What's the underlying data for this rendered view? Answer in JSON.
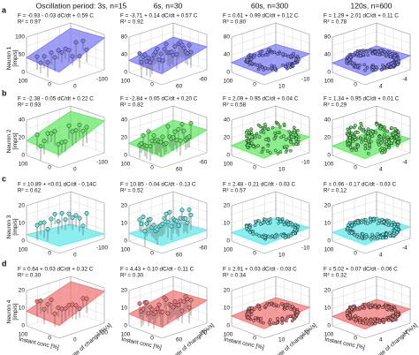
{
  "columns": [
    "Oscillation period: 3s, n=15",
    "6s, n=30",
    "60s, n=300",
    "120s, n=600"
  ],
  "rows": [
    {
      "letter": "a",
      "ylabel": [
        "Neuron 1",
        "[imp/s]"
      ],
      "color": "#7f7ff5",
      "panels": [
        {
          "eq": "F = -0.93 - 0.03 dC/dt + 0.59 C",
          "r2": "R² = 0.97",
          "zticks": [
            "100",
            "50",
            "0"
          ],
          "xticks": [
            "100",
            "0"
          ],
          "yticks": [
            "0",
            "-100"
          ]
        },
        {
          "eq": "F = -3.71 + 0.14 dC/dt + 0.57 C",
          "r2": "R² = 0.92",
          "zticks": [
            "80",
            "40",
            "0"
          ],
          "xticks": [
            "100",
            "0"
          ],
          "yticks": [
            "60",
            "-60"
          ]
        },
        {
          "eq": "F = 0.61 + 0.99 dC/dt + 0.12 C",
          "r2": "R² = 0.80",
          "zticks": [
            "80",
            "40",
            "0"
          ],
          "xticks": [
            "100",
            "0"
          ],
          "yticks": [
            "10",
            "-10"
          ]
        },
        {
          "eq": "F = 1.29 + 2.01 dC/dt + 0.11 C",
          "r2": "R² = 0.78",
          "zticks": [
            "80",
            "40",
            "0"
          ],
          "xticks": [
            "100",
            "0"
          ],
          "yticks": [
            "4",
            "-4"
          ]
        }
      ]
    },
    {
      "letter": "b",
      "ylabel": [
        "Neuron 2",
        "[imp/s]"
      ],
      "color": "#66e866",
      "panels": [
        {
          "eq": "F = -2.38 - 0.05 dC/dt + 0.22 C",
          "r2": "R² = 0.93",
          "zticks": [
            "40",
            "20",
            "0"
          ],
          "xticks": [
            "100",
            "0"
          ],
          "yticks": [
            "0",
            "-100"
          ]
        },
        {
          "eq": "F = -2.84 + 0.05 dC/dt + 0.20 C",
          "r2": "R² = 0.82",
          "zticks": [
            "40",
            "20",
            "0"
          ],
          "xticks": [
            "100",
            "0"
          ],
          "yticks": [
            "60",
            "-60"
          ]
        },
        {
          "eq": "F = 2.09 + 0.95 dC/dt + 0.04 C",
          "r2": "R² = 0.58",
          "zticks": [
            "40",
            "20",
            "0"
          ],
          "xticks": [
            "100",
            "0"
          ],
          "yticks": [
            "10",
            "-10"
          ]
        },
        {
          "eq": "F = 1.34 + 0.95 dC/dt + 0.01 C",
          "r2": "R² = 0.29",
          "zticks": [
            "40",
            "20",
            "0"
          ],
          "xticks": [
            "100",
            "0"
          ],
          "yticks": [
            "4",
            "-4"
          ]
        }
      ]
    },
    {
      "letter": "c",
      "ylabel": [
        "Neuron 3",
        "[imp/s]"
      ],
      "color": "#66e8e8",
      "panels": [
        {
          "eq": "F = 10.89 + <0.01 dC/dt - 0.14C",
          "r2": "R² = 0.62",
          "zticks": [
            "20",
            "10",
            "0"
          ],
          "xticks": [
            "100",
            "0"
          ],
          "yticks": [
            "0",
            "-100"
          ]
        },
        {
          "eq": "F = 10.85 - 0.04 dC/dt - 0.13 C",
          "r2": "R² = 0.52",
          "zticks": [
            "20",
            "10",
            "0"
          ],
          "xticks": [
            "100",
            "0"
          ],
          "yticks": [
            "60",
            "-60"
          ]
        },
        {
          "eq": "F = 2.48 - 0.21 dC/dt - 0.03 C",
          "r2": "R² = 0.57",
          "zticks": [
            "20",
            "10",
            "0"
          ],
          "xticks": [
            "100",
            "0"
          ],
          "yticks": [
            "10",
            "-10"
          ]
        },
        {
          "eq": "F = 0.96 - 0.17 dC/dt - 0.03 C",
          "r2": "R² = 0.12",
          "zticks": [
            "20",
            "10",
            "0"
          ],
          "xticks": [
            "100",
            "0"
          ],
          "yticks": [
            "4",
            "-4"
          ]
        }
      ]
    },
    {
      "letter": "d",
      "ylabel": [
        "Neuron 4",
        "[imp/s]"
      ],
      "color": "#f27a7a",
      "panels": [
        {
          "eq": "F = 0.64 + 0.03 dC/dt + 0.32 C",
          "r2": "R² = 0.30",
          "zticks": [
            "20",
            "10",
            "0"
          ],
          "xticks": [
            "100",
            "0"
          ],
          "yticks": [
            "0",
            "-100"
          ]
        },
        {
          "eq": "F = 4.43 + 0.10 dC/dt - 0.11 C",
          "r2": "R² = 0.30",
          "zticks": [
            "20",
            "10",
            "0"
          ],
          "xticks": [
            "100",
            "0"
          ],
          "yticks": [
            "60",
            "-60"
          ]
        },
        {
          "eq": "F = 2.91 + 0.03 dC/dt - 0.03 C",
          "r2": "R² = 0.34",
          "zticks": [
            "20",
            "10",
            "0"
          ],
          "xticks": [
            "100",
            "0"
          ],
          "yticks": [
            "10",
            "-10"
          ]
        },
        {
          "eq": "F = 5.02 + 0.07 dC/dt - 0.06 C",
          "r2": "R² = 0.32",
          "zticks": [
            "20",
            "10",
            "0"
          ],
          "xticks": [
            "100",
            "0"
          ],
          "yticks": [
            "4",
            "-4"
          ]
        }
      ]
    }
  ],
  "xlabel": "Instant conc [%]",
  "ylabel": "Rate of change [%/s]"
}
